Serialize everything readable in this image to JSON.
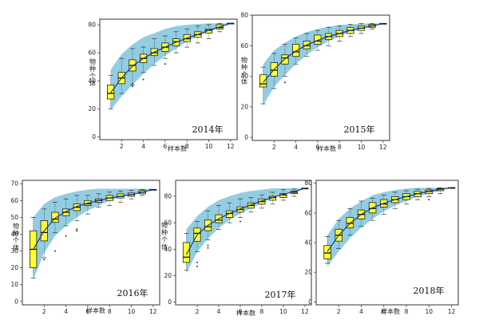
{
  "colors": {
    "band": "#92cde2",
    "box": "#ffff33",
    "mean_line": "#1a3a8a"
  },
  "chart_data": [
    {
      "type": "boxplot",
      "year_label": "2014年",
      "xlabel": "样本数",
      "ylabel": "物种个体",
      "xlim": [
        0,
        12.6
      ],
      "ylim": [
        -2,
        84
      ],
      "xticks": [
        2,
        4,
        6,
        8,
        10,
        12
      ],
      "yticks": [
        0,
        20,
        40,
        60,
        80
      ],
      "band": {
        "x": [
          1,
          2,
          3,
          4,
          5,
          6,
          7,
          8,
          9,
          10,
          11,
          12
        ],
        "lower": [
          19,
          29,
          37,
          45,
          52,
          58,
          63,
          68,
          72,
          75,
          78,
          81
        ],
        "upper": [
          48,
          59,
          66,
          71,
          74,
          77,
          79,
          80,
          80.5,
          81,
          81,
          81
        ]
      },
      "boxes": [
        {
          "x": 1,
          "whislo": 20,
          "q1": 27,
          "med": 31,
          "q3": 37,
          "whishi": 44,
          "outliers": []
        },
        {
          "x": 2,
          "whislo": 31,
          "q1": 38,
          "med": 42,
          "q3": 46,
          "whishi": 56,
          "outliers": []
        },
        {
          "x": 3,
          "whislo": 37,
          "q1": 47,
          "med": 51,
          "q3": 55,
          "whishi": 63,
          "outliers": [
            36,
            38
          ]
        },
        {
          "x": 4,
          "whislo": 46,
          "q1": 53,
          "med": 56,
          "q3": 59,
          "whishi": 64,
          "outliers": [
            41
          ]
        },
        {
          "x": 5,
          "whislo": 51,
          "q1": 58,
          "med": 60,
          "q3": 63,
          "whishi": 70,
          "outliers": []
        },
        {
          "x": 6,
          "whislo": 56,
          "q1": 61,
          "med": 64,
          "q3": 67,
          "whishi": 72,
          "outliers": [
            52
          ]
        },
        {
          "x": 7,
          "whislo": 60,
          "q1": 65,
          "med": 68,
          "q3": 70,
          "whishi": 75,
          "outliers": []
        },
        {
          "x": 8,
          "whislo": 64,
          "q1": 68,
          "med": 70,
          "q3": 73,
          "whishi": 77,
          "outliers": []
        },
        {
          "x": 9,
          "whislo": 67,
          "q1": 71,
          "med": 73,
          "q3": 75,
          "whishi": 79,
          "outliers": []
        },
        {
          "x": 10,
          "whislo": 70,
          "q1": 74,
          "med": 76,
          "q3": 77,
          "whishi": 80,
          "outliers": []
        },
        {
          "x": 11,
          "whislo": 75,
          "q1": 77,
          "med": 78,
          "q3": 80,
          "whishi": 81,
          "outliers": []
        },
        {
          "x": 12,
          "whislo": 81,
          "q1": 81,
          "med": 81,
          "q3": 81,
          "whishi": 81,
          "outliers": []
        }
      ],
      "mean": [
        31.5,
        42,
        50.5,
        56,
        60.5,
        64,
        67.5,
        70.5,
        73,
        76,
        78.5,
        81
      ]
    },
    {
      "type": "boxplot",
      "year_label": "2015年",
      "xlabel": "样本数",
      "ylabel": "物种个体",
      "xlim": [
        0,
        12.6
      ],
      "ylim": [
        -2,
        80
      ],
      "xticks": [
        2,
        4,
        6,
        8,
        10,
        12
      ],
      "yticks": [
        0,
        20,
        40,
        60,
        80
      ],
      "band": {
        "x": [
          1,
          2,
          3,
          4,
          5,
          6,
          7,
          8,
          9,
          10,
          11,
          12
        ],
        "lower": [
          21,
          33,
          41,
          48,
          54,
          59,
          63,
          66,
          69,
          71,
          73,
          74
        ],
        "upper": [
          48,
          57,
          62,
          66,
          69,
          71,
          72.5,
          73.5,
          74,
          74.5,
          74.5,
          74.5
        ]
      },
      "boxes": [
        {
          "x": 1,
          "whislo": 22,
          "q1": 33,
          "med": 35,
          "q3": 41,
          "whishi": 46,
          "outliers": []
        },
        {
          "x": 2,
          "whislo": 32,
          "q1": 40,
          "med": 44,
          "q3": 49,
          "whishi": 55,
          "outliers": []
        },
        {
          "x": 3,
          "whislo": 40,
          "q1": 48,
          "med": 52,
          "q3": 54,
          "whishi": 61,
          "outliers": [
            36
          ]
        },
        {
          "x": 4,
          "whislo": 48,
          "q1": 53,
          "med": 56,
          "q3": 61,
          "whishi": 65,
          "outliers": []
        },
        {
          "x": 5,
          "whislo": 53,
          "q1": 58,
          "med": 60,
          "q3": 63,
          "whishi": 68,
          "outliers": []
        },
        {
          "x": 6,
          "whislo": 57,
          "q1": 61,
          "med": 63,
          "q3": 67,
          "whishi": 70,
          "outliers": []
        },
        {
          "x": 7,
          "whislo": 60,
          "q1": 64,
          "med": 66,
          "q3": 68,
          "whishi": 72,
          "outliers": []
        },
        {
          "x": 8,
          "whislo": 63,
          "q1": 66,
          "med": 68,
          "q3": 70,
          "whishi": 73,
          "outliers": []
        },
        {
          "x": 9,
          "whislo": 66,
          "q1": 68,
          "med": 70,
          "q3": 72,
          "whishi": 74,
          "outliers": []
        },
        {
          "x": 10,
          "whislo": 68,
          "q1": 70,
          "med": 71.5,
          "q3": 73,
          "whishi": 74.5,
          "outliers": []
        },
        {
          "x": 11,
          "whislo": 71,
          "q1": 72,
          "med": 73,
          "q3": 74,
          "whishi": 74.5,
          "outliers": []
        },
        {
          "x": 12,
          "whislo": 74.5,
          "q1": 74.5,
          "med": 74.5,
          "q3": 74.5,
          "whishi": 74.5,
          "outliers": []
        }
      ],
      "mean": [
        36,
        44.5,
        51.5,
        56.5,
        60.5,
        63.5,
        66,
        68,
        70,
        71.5,
        73,
        74.5
      ]
    },
    {
      "type": "boxplot",
      "year_label": "2016年",
      "xlabel": "样本数",
      "ylabel": "物种个体",
      "xlim": [
        0,
        12.6
      ],
      "ylim": [
        -2,
        72
      ],
      "xticks": [
        2,
        4,
        6,
        8,
        10,
        12
      ],
      "yticks": [
        0,
        10,
        20,
        30,
        40,
        50,
        60,
        70
      ],
      "band": {
        "x": [
          1,
          2,
          3,
          4,
          5,
          6,
          7,
          8,
          9,
          10,
          11,
          12
        ],
        "lower": [
          13,
          29,
          39,
          45,
          50,
          54,
          57,
          60,
          62,
          63.5,
          65,
          66
        ],
        "upper": [
          50,
          58,
          62,
          64,
          65.5,
          66.5,
          67,
          67,
          67,
          67,
          67,
          67
        ]
      },
      "boxes": [
        {
          "x": 1,
          "whislo": 14,
          "q1": 20,
          "med": 31,
          "q3": 42,
          "whishi": 50,
          "outliers": []
        },
        {
          "x": 2,
          "whislo": 26,
          "q1": 36,
          "med": 41,
          "q3": 48,
          "whishi": 55,
          "outliers": [
            25
          ]
        },
        {
          "x": 3,
          "whislo": 41,
          "q1": 47,
          "med": 49,
          "q3": 53,
          "whishi": 59,
          "outliers": [
            30
          ]
        },
        {
          "x": 4,
          "whislo": 45,
          "q1": 51,
          "med": 53,
          "q3": 55,
          "whishi": 61,
          "outliers": [
            39
          ]
        },
        {
          "x": 5,
          "whislo": 48,
          "q1": 54,
          "med": 56,
          "q3": 58,
          "whishi": 63,
          "outliers": [
            42,
            43
          ]
        },
        {
          "x": 6,
          "whislo": 52,
          "q1": 57,
          "med": 58,
          "q3": 60,
          "whishi": 63,
          "outliers": []
        },
        {
          "x": 7,
          "whislo": 56,
          "q1": 59,
          "med": 60,
          "q3": 61,
          "whishi": 64,
          "outliers": []
        },
        {
          "x": 8,
          "whislo": 57,
          "q1": 60,
          "med": 61.5,
          "q3": 63,
          "whishi": 65,
          "outliers": []
        },
        {
          "x": 9,
          "whislo": 59,
          "q1": 61.5,
          "med": 62.5,
          "q3": 64,
          "whishi": 65.5,
          "outliers": []
        },
        {
          "x": 10,
          "whislo": 61,
          "q1": 62.5,
          "med": 63.5,
          "q3": 64.5,
          "whishi": 66,
          "outliers": []
        },
        {
          "x": 11,
          "whislo": 63,
          "q1": 64,
          "med": 65,
          "q3": 66,
          "whishi": 66.5,
          "outliers": []
        },
        {
          "x": 12,
          "whislo": 66.5,
          "q1": 66.5,
          "med": 66.5,
          "q3": 66.5,
          "whishi": 66.5,
          "outliers": []
        }
      ],
      "mean": [
        31,
        42,
        49.5,
        53.5,
        56.5,
        58.5,
        60,
        61.5,
        62.5,
        63.5,
        65,
        66.5
      ]
    },
    {
      "type": "boxplot",
      "year_label": "2017年",
      "xlabel": "样本数",
      "ylabel": "物种个体",
      "xlim": [
        0,
        12.6
      ],
      "ylim": [
        -2,
        92
      ],
      "xticks": [
        2,
        4,
        6,
        8,
        10,
        12
      ],
      "yticks": [
        0,
        20,
        40,
        60,
        80
      ],
      "band": {
        "x": [
          1,
          2,
          3,
          4,
          5,
          6,
          7,
          8,
          9,
          10,
          11,
          12
        ],
        "lower": [
          22,
          38,
          48,
          56,
          62,
          67,
          71,
          75,
          79,
          82,
          84,
          86
        ],
        "upper": [
          55,
          65,
          72,
          77,
          80,
          82.5,
          84,
          85,
          86,
          86,
          86,
          86
        ]
      },
      "boxes": [
        {
          "x": 1,
          "whislo": 24,
          "q1": 30,
          "med": 34,
          "q3": 45,
          "whishi": 52,
          "outliers": []
        },
        {
          "x": 2,
          "whislo": 38,
          "q1": 46,
          "med": 52,
          "q3": 56,
          "whishi": 61,
          "outliers": [
            27,
            30
          ]
        },
        {
          "x": 3,
          "whislo": 47,
          "q1": 54,
          "med": 57,
          "q3": 62,
          "whishi": 69,
          "outliers": [
            41,
            43
          ]
        },
        {
          "x": 4,
          "whislo": 55,
          "q1": 60,
          "med": 62,
          "q3": 66,
          "whishi": 73,
          "outliers": []
        },
        {
          "x": 5,
          "whislo": 60,
          "q1": 64,
          "med": 67,
          "q3": 69,
          "whishi": 75,
          "outliers": []
        },
        {
          "x": 6,
          "whislo": 64,
          "q1": 68,
          "med": 70,
          "q3": 72,
          "whishi": 78,
          "outliers": [
            61
          ]
        },
        {
          "x": 7,
          "whislo": 68,
          "q1": 71,
          "med": 73,
          "q3": 75,
          "whishi": 79,
          "outliers": []
        },
        {
          "x": 8,
          "whislo": 71,
          "q1": 74,
          "med": 76,
          "q3": 78,
          "whishi": 81,
          "outliers": []
        },
        {
          "x": 9,
          "whislo": 74,
          "q1": 77,
          "med": 79,
          "q3": 80,
          "whishi": 83,
          "outliers": []
        },
        {
          "x": 10,
          "whislo": 77,
          "q1": 79,
          "med": 81,
          "q3": 82,
          "whishi": 85,
          "outliers": []
        },
        {
          "x": 11,
          "whislo": 80,
          "q1": 82,
          "med": 83,
          "q3": 84,
          "whishi": 85.5,
          "outliers": []
        },
        {
          "x": 12,
          "whislo": 86,
          "q1": 86,
          "med": 86,
          "q3": 86,
          "whishi": 86,
          "outliers": []
        }
      ],
      "mean": [
        36,
        51,
        58,
        63,
        67,
        70.5,
        73.5,
        76.5,
        79,
        81.5,
        83.5,
        86
      ]
    },
    {
      "type": "boxplot",
      "year_label": "2018年",
      "xlabel": "样本数",
      "ylabel": "",
      "xlim": [
        0,
        12.6
      ],
      "ylim": [
        -2,
        82
      ],
      "xticks": [
        2,
        4,
        6,
        8,
        10,
        12
      ],
      "yticks": [
        0,
        20,
        40,
        60,
        80
      ],
      "band": {
        "x": [
          1,
          2,
          3,
          4,
          5,
          6,
          7,
          8,
          9,
          10,
          11,
          12
        ],
        "lower": [
          24,
          34,
          43,
          50,
          56,
          61,
          65,
          68,
          71,
          73,
          75,
          77
        ],
        "upper": [
          45,
          56,
          63,
          68,
          72,
          74,
          75.5,
          76.5,
          77,
          77,
          77,
          77
        ]
      },
      "boxes": [
        {
          "x": 1,
          "whislo": 26,
          "q1": 29,
          "med": 33,
          "q3": 38,
          "whishi": 44,
          "outliers": []
        },
        {
          "x": 2,
          "whislo": 36,
          "q1": 41,
          "med": 45,
          "q3": 49,
          "whishi": 55,
          "outliers": []
        },
        {
          "x": 3,
          "whislo": 45,
          "q1": 50,
          "med": 53,
          "q3": 57,
          "whishi": 63,
          "outliers": []
        },
        {
          "x": 4,
          "whislo": 51,
          "q1": 56,
          "med": 59,
          "q3": 62,
          "whishi": 68,
          "outliers": []
        },
        {
          "x": 5,
          "whislo": 55,
          "q1": 60,
          "med": 63,
          "q3": 67,
          "whishi": 70,
          "outliers": []
        },
        {
          "x": 6,
          "whislo": 59,
          "q1": 64,
          "med": 66,
          "q3": 69,
          "whishi": 72,
          "outliers": []
        },
        {
          "x": 7,
          "whislo": 63,
          "q1": 67,
          "med": 69,
          "q3": 71,
          "whishi": 74,
          "outliers": []
        },
        {
          "x": 8,
          "whislo": 66,
          "q1": 69,
          "med": 71,
          "q3": 73,
          "whishi": 75,
          "outliers": []
        },
        {
          "x": 9,
          "whislo": 69,
          "q1": 71,
          "med": 73,
          "q3": 74.5,
          "whishi": 76,
          "outliers": []
        },
        {
          "x": 10,
          "whislo": 71,
          "q1": 73,
          "med": 74.5,
          "q3": 75.5,
          "whishi": 76.5,
          "outliers": [
            69
          ]
        },
        {
          "x": 11,
          "whislo": 73,
          "q1": 75,
          "med": 76,
          "q3": 76.5,
          "whishi": 77,
          "outliers": []
        },
        {
          "x": 12,
          "whislo": 77,
          "q1": 77,
          "med": 77,
          "q3": 77,
          "whishi": 77,
          "outliers": []
        }
      ],
      "mean": [
        34,
        45,
        53,
        59,
        63.5,
        66.5,
        69,
        71,
        73,
        74.5,
        76,
        77
      ]
    }
  ]
}
